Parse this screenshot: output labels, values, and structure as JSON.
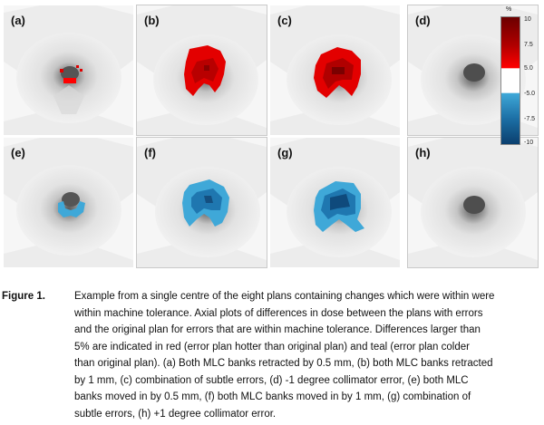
{
  "panels": [
    {
      "label": "(a)",
      "overlay": "red-small"
    },
    {
      "label": "(b)",
      "overlay": "red-medium"
    },
    {
      "label": "(c)",
      "overlay": "red-large"
    },
    {
      "label": "(d)",
      "overlay": "none"
    },
    {
      "label": "(e)",
      "overlay": "teal-small"
    },
    {
      "label": "(f)",
      "overlay": "teal-medium"
    },
    {
      "label": "(g)",
      "overlay": "teal-large"
    },
    {
      "label": "(h)",
      "overlay": "none"
    }
  ],
  "colorbar": {
    "unit": "%",
    "ticks": [
      "10",
      "7.5",
      "5.0",
      "-5.0",
      "-7.5",
      "-10"
    ],
    "colors": {
      "hot_dark": "#6b0000",
      "hot": "#ff0000",
      "cold": "#3fa8d8",
      "cold_dark": "#0b3f6e"
    }
  },
  "caption": {
    "label": "Figure 1.",
    "first_line": "Example from a single centre of the eight plans containing changes which were within were",
    "lines": [
      "within machine tolerance. Axial plots of differences in dose between the plans with errors",
      "and the original plan for errors that are within machine tolerance.  Differences larger than",
      "5% are indicated in red (error plan hotter than original plan) and teal (error plan colder",
      "than original plan). (a) Both MLC banks retracted by 0.5 mm, (b) both MLC banks retracted",
      "by 1 mm, (c) combination of subtle errors, (d) -1 degree collimator error, (e) both MLC",
      "banks moved in by 0.5 mm, (f) both MLC banks moved in by 1 mm, (g) combination of",
      "subtle errors, (h) +1 degree collimator error."
    ]
  }
}
